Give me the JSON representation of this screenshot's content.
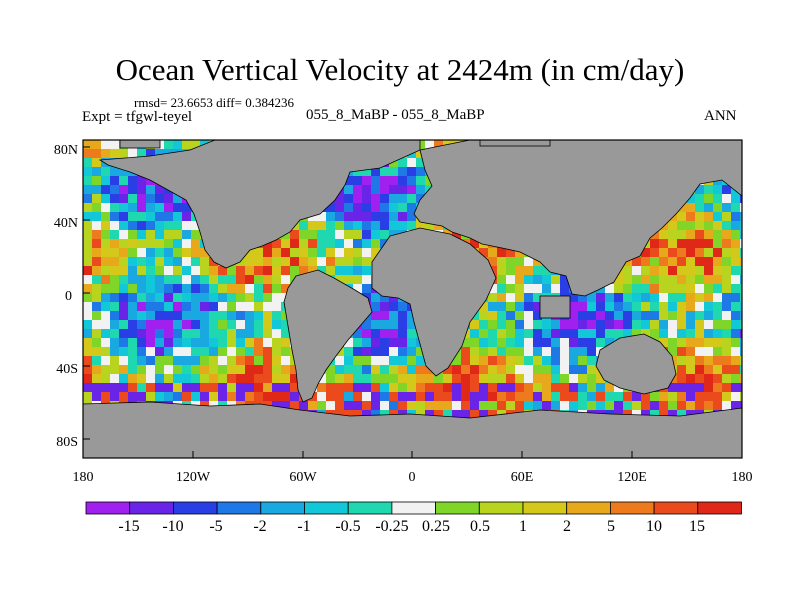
{
  "title": "Ocean Vertical Velocity at 2424m (in cm/day)",
  "stats": "rmsd= 23.6653 diff= 0.384236",
  "experiment": "Expt = tfgwl-teyel",
  "cases": "055_8_MaBP - 055_8_MaBP",
  "season": "ANN",
  "lat_ticks": [
    "80N",
    "40N",
    "0",
    "40S",
    "80S"
  ],
  "lon_ticks": [
    "180",
    "120W",
    "60W",
    "0",
    "60E",
    "120E",
    "180"
  ],
  "colorbar": {
    "labels": [
      "-15",
      "-10",
      "-5",
      "-2",
      "-1",
      "-0.5",
      "-0.25",
      "0.25",
      "0.5",
      "1",
      "2",
      "5",
      "10",
      "15"
    ],
    "colors": [
      "#a020f0",
      "#6a24e8",
      "#2a3ee6",
      "#1e78e6",
      "#1aa8e0",
      "#12c8d8",
      "#20d8b0",
      "#f2f2f2",
      "#7fd628",
      "#b8d41e",
      "#d4c81a",
      "#e8a81c",
      "#ee7a1e",
      "#ea4a1c",
      "#e02818"
    ]
  },
  "land_color": "#999999"
}
